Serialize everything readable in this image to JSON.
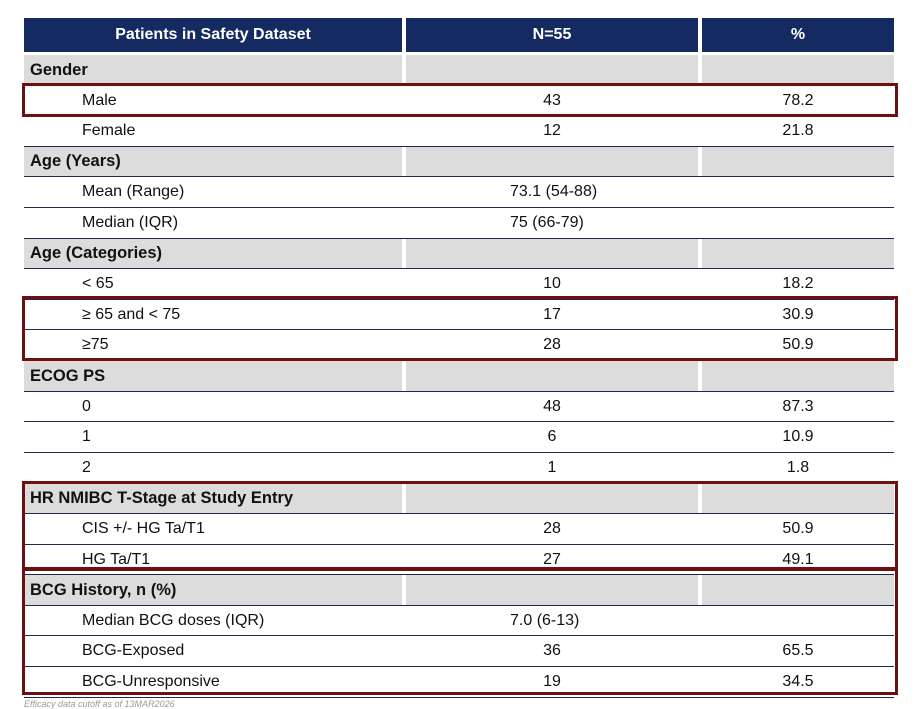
{
  "header": {
    "col1": "Patients in Safety Dataset",
    "col2": "N=55",
    "col3": "%"
  },
  "rows": [
    {
      "type": "section",
      "label": "Gender"
    },
    {
      "type": "data",
      "label": "Male",
      "n": "43",
      "pct": "78.2"
    },
    {
      "type": "data",
      "label": "Female",
      "n": "12",
      "pct": "21.8"
    },
    {
      "type": "section",
      "label": "Age (Years)"
    },
    {
      "type": "span",
      "label": "Mean (Range)",
      "value": "73.1 (54-88)"
    },
    {
      "type": "span",
      "label": "Median (IQR)",
      "value": "75 (66-79)"
    },
    {
      "type": "section",
      "label": "Age (Categories)"
    },
    {
      "type": "data",
      "label": "< 65",
      "n": "10",
      "pct": "18.2"
    },
    {
      "type": "data",
      "label": "≥ 65 and < 75",
      "n": "17",
      "pct": "30.9"
    },
    {
      "type": "data",
      "label": "≥75",
      "n": "28",
      "pct": "50.9"
    },
    {
      "type": "section",
      "label": "ECOG PS"
    },
    {
      "type": "data",
      "label": "0",
      "n": "48",
      "pct": "87.3"
    },
    {
      "type": "data",
      "label": "1",
      "n": "6",
      "pct": "10.9"
    },
    {
      "type": "data",
      "label": "2",
      "n": "1",
      "pct": "1.8"
    },
    {
      "type": "section",
      "label": "HR NMIBC T-Stage at Study Entry"
    },
    {
      "type": "data",
      "label": "CIS +/- HG Ta/T1",
      "n": "28",
      "pct": "50.9"
    },
    {
      "type": "data",
      "label": "HG Ta/T1",
      "n": "27",
      "pct": "49.1"
    },
    {
      "type": "section",
      "label": "BCG History, n (%)"
    },
    {
      "type": "span",
      "label": "Median BCG doses (IQR)",
      "value": "7.0 (6-13)"
    },
    {
      "type": "data",
      "label": "BCG-Exposed",
      "n": "36",
      "pct": "65.5"
    },
    {
      "type": "data",
      "label": "BCG-Unresponsive",
      "n": "19",
      "pct": "34.5"
    }
  ],
  "footer": "Efficacy data cutoff as of 13MAR2026",
  "colors": {
    "header_bg": "#142a61",
    "section_bg": "#dcdcdc",
    "highlight": "#6e1010"
  }
}
